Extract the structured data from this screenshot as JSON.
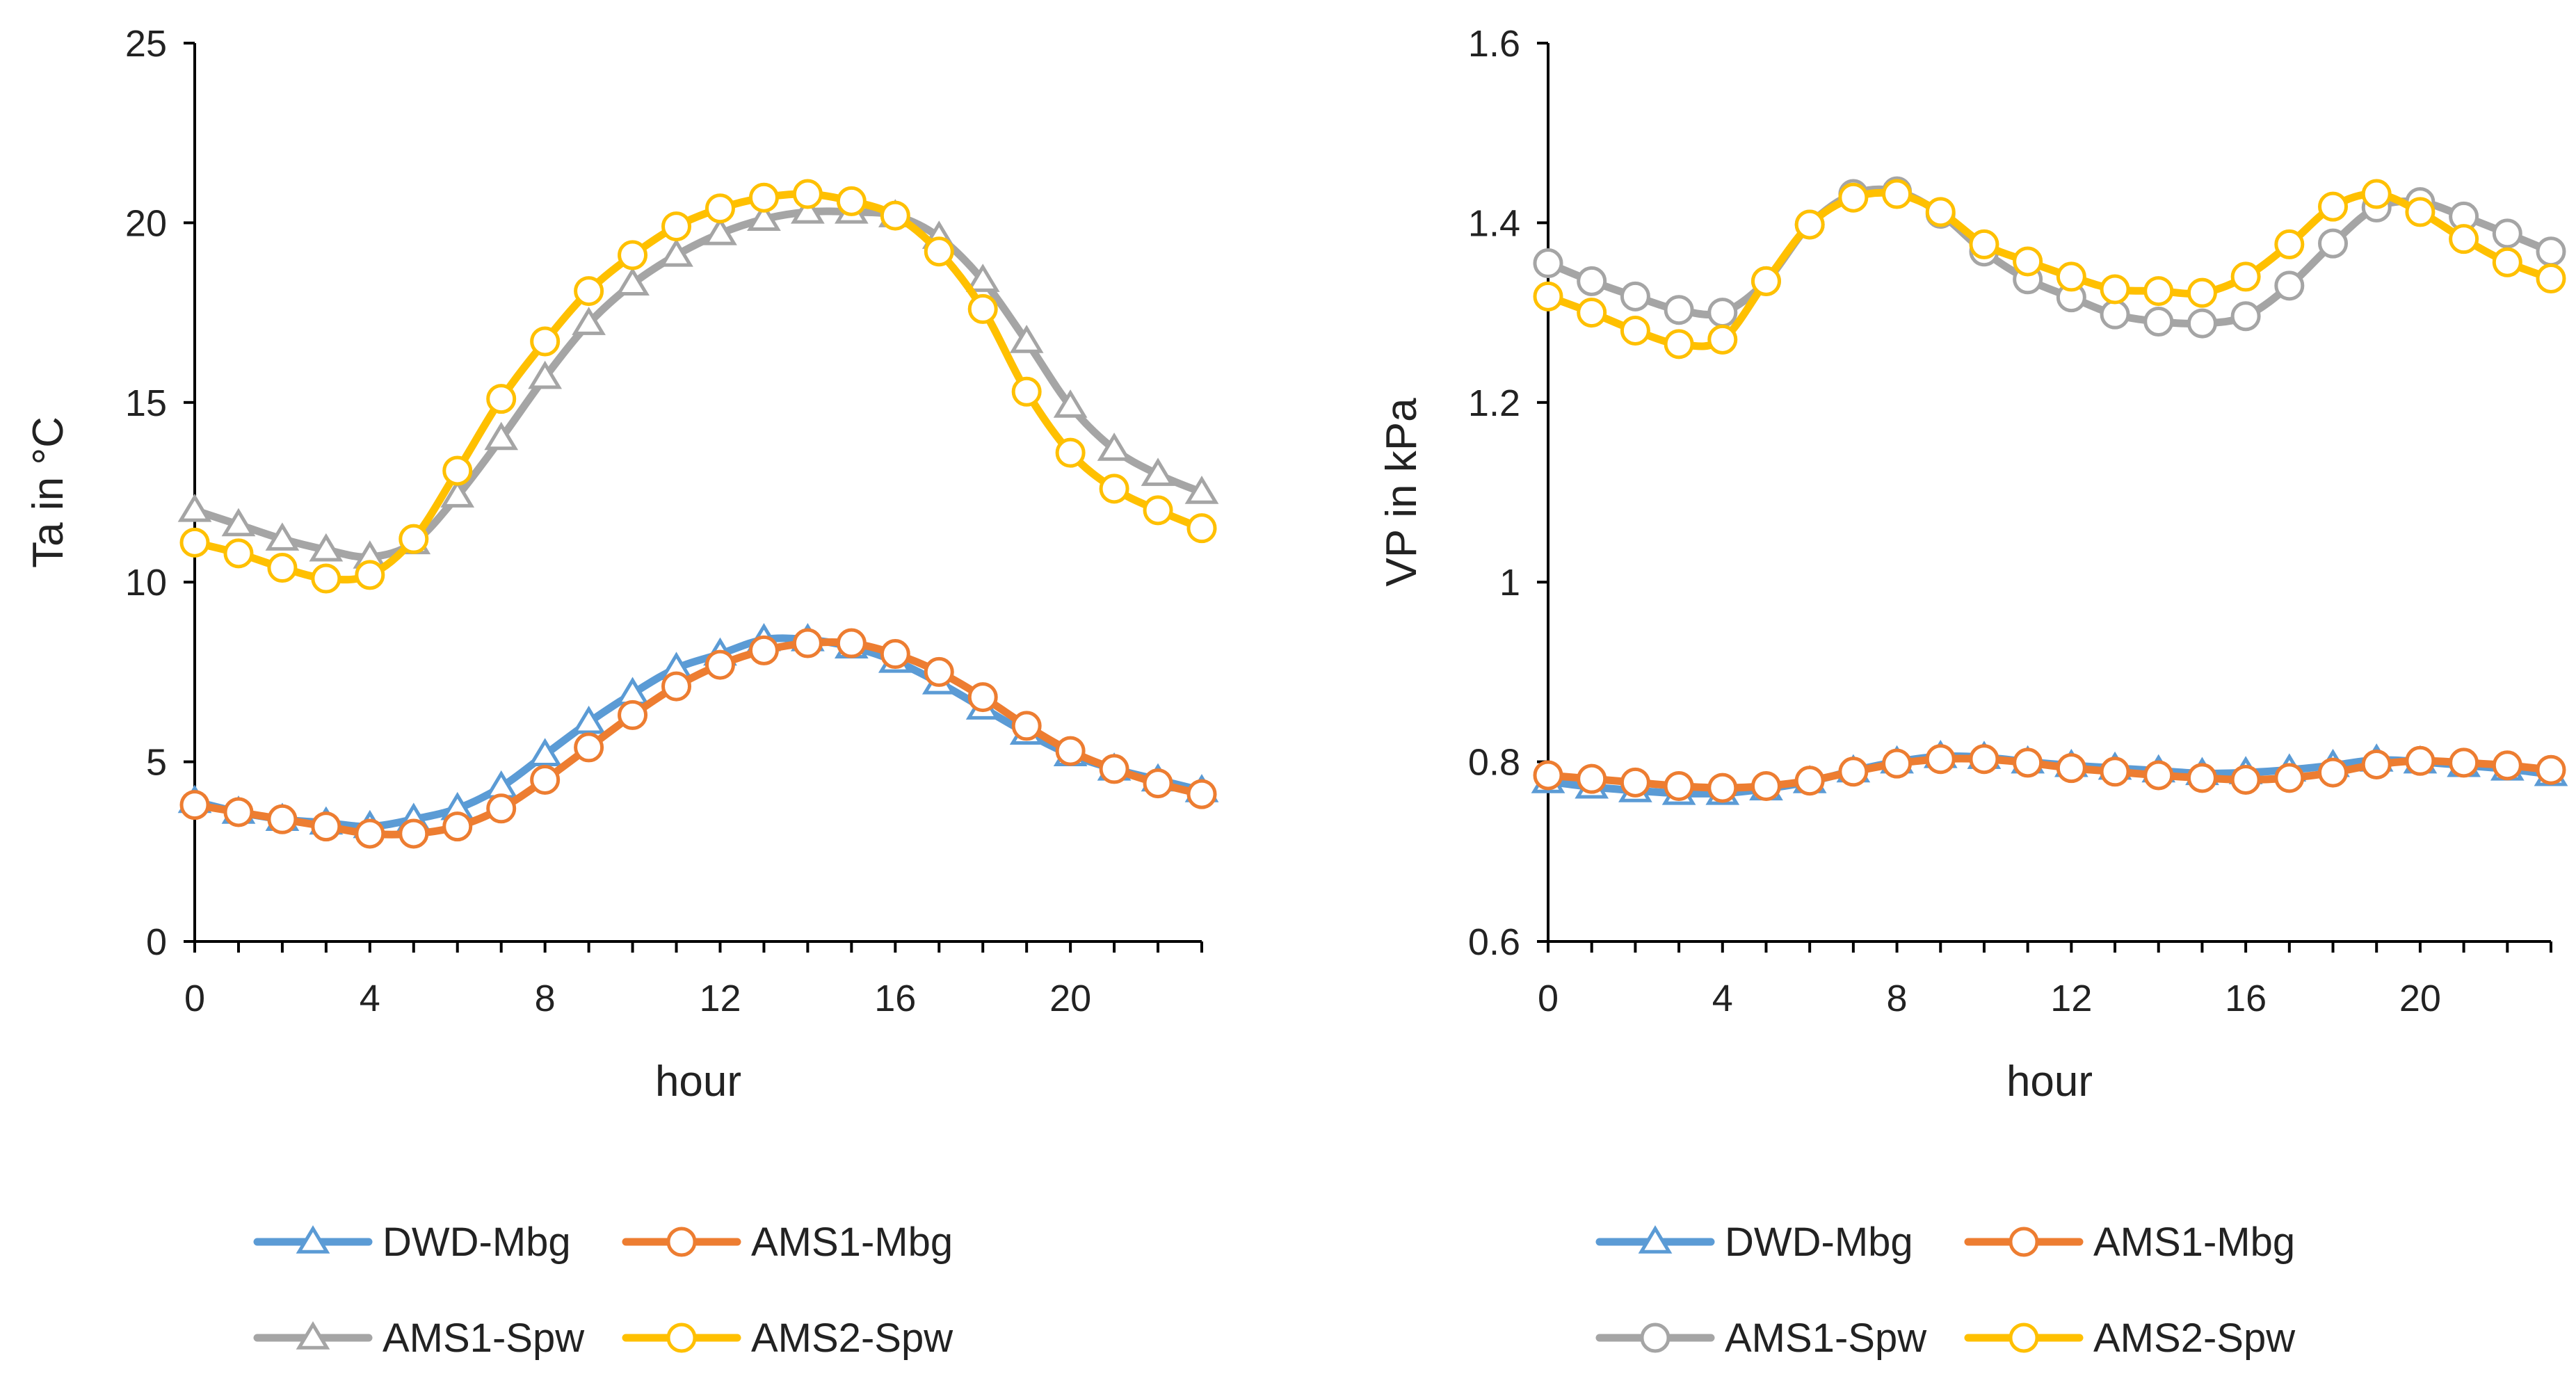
{
  "chart_data": [
    {
      "type": "line",
      "title": "",
      "xlabel": "hour",
      "ylabel": "Ta in °C",
      "xlim": [
        0,
        23
      ],
      "ylim": [
        0,
        25
      ],
      "xticks": [
        0,
        4,
        8,
        12,
        16,
        20
      ],
      "xtick_labels": [
        "0",
        "4",
        "8",
        "12",
        "16",
        "20"
      ],
      "yticks": [
        0,
        5,
        10,
        15,
        20,
        25
      ],
      "ytick_labels": [
        "0",
        "5",
        "10",
        "15",
        "20",
        "25"
      ],
      "grid": false,
      "legend_position": "bottom",
      "x": [
        0,
        1,
        2,
        3,
        4,
        5,
        6,
        7,
        8,
        9,
        10,
        11,
        12,
        13,
        14,
        15,
        16,
        17,
        18,
        19,
        20,
        21,
        22,
        23
      ],
      "series": [
        {
          "name": "DWD-Mbg",
          "color": "#5B9BD5",
          "marker": "triangle",
          "values": [
            3.9,
            3.6,
            3.4,
            3.3,
            3.2,
            3.4,
            3.7,
            4.3,
            5.2,
            6.1,
            6.9,
            7.6,
            8.0,
            8.4,
            8.4,
            8.2,
            7.8,
            7.2,
            6.5,
            5.8,
            5.2,
            4.8,
            4.5,
            4.2
          ]
        },
        {
          "name": "AMS1-Mbg",
          "color": "#ED7D31",
          "marker": "circle",
          "values": [
            3.8,
            3.6,
            3.4,
            3.2,
            3.0,
            3.0,
            3.2,
            3.7,
            4.5,
            5.4,
            6.3,
            7.1,
            7.7,
            8.1,
            8.3,
            8.3,
            8.0,
            7.5,
            6.8,
            6.0,
            5.3,
            4.8,
            4.4,
            4.1
          ]
        },
        {
          "name": "AMS1-Spw",
          "color": "#A5A5A5",
          "marker": "triangle",
          "values": [
            12.0,
            11.6,
            11.2,
            10.9,
            10.7,
            11.1,
            12.4,
            14.0,
            15.7,
            17.2,
            18.3,
            19.1,
            19.7,
            20.1,
            20.3,
            20.3,
            20.2,
            19.6,
            18.4,
            16.7,
            14.9,
            13.7,
            13.0,
            12.5
          ]
        },
        {
          "name": "AMS2-Spw",
          "color": "#FFC000",
          "marker": "circle",
          "values": [
            11.1,
            10.8,
            10.4,
            10.1,
            10.2,
            11.2,
            13.1,
            15.1,
            16.7,
            18.1,
            19.1,
            19.9,
            20.4,
            20.7,
            20.8,
            20.6,
            20.2,
            19.2,
            17.6,
            15.3,
            13.6,
            12.6,
            12.0,
            11.5
          ]
        }
      ],
      "legend": [
        {
          "label": "DWD-Mbg",
          "color": "#5B9BD5",
          "marker": "triangle"
        },
        {
          "label": "AMS1-Mbg",
          "color": "#ED7D31",
          "marker": "circle"
        },
        {
          "label": "AMS1-Spw",
          "color": "#A5A5A5",
          "marker": "triangle"
        },
        {
          "label": "AMS2-Spw",
          "color": "#FFC000",
          "marker": "circle"
        }
      ]
    },
    {
      "type": "line",
      "title": "",
      "xlabel": "hour",
      "ylabel": "VP in kPa",
      "xlim": [
        0,
        23
      ],
      "ylim": [
        0.6,
        1.6
      ],
      "xticks": [
        0,
        4,
        8,
        12,
        16,
        20
      ],
      "xtick_labels": [
        "0",
        "4",
        "8",
        "12",
        "16",
        "20"
      ],
      "yticks": [
        0.6,
        0.8,
        1.0,
        1.2,
        1.4,
        1.6
      ],
      "ytick_labels": [
        "0.6",
        "0.8",
        "1",
        "1.2",
        "1.4",
        "1.6"
      ],
      "grid": false,
      "legend_position": "bottom",
      "x": [
        0,
        1,
        2,
        3,
        4,
        5,
        6,
        7,
        8,
        9,
        10,
        11,
        12,
        13,
        14,
        15,
        16,
        17,
        18,
        19,
        20,
        21,
        22,
        23
      ],
      "series": [
        {
          "name": "DWD-Mbg",
          "color": "#5B9BD5",
          "marker": "triangle",
          "values": [
            0.778,
            0.772,
            0.768,
            0.765,
            0.765,
            0.77,
            0.778,
            0.79,
            0.8,
            0.806,
            0.805,
            0.8,
            0.796,
            0.793,
            0.79,
            0.787,
            0.788,
            0.791,
            0.796,
            0.802,
            0.8,
            0.796,
            0.792,
            0.786
          ]
        },
        {
          "name": "AMS1-Mbg",
          "color": "#ED7D31",
          "marker": "circle",
          "values": [
            0.785,
            0.781,
            0.777,
            0.773,
            0.771,
            0.773,
            0.779,
            0.789,
            0.798,
            0.803,
            0.803,
            0.799,
            0.793,
            0.789,
            0.785,
            0.782,
            0.78,
            0.782,
            0.788,
            0.797,
            0.801,
            0.799,
            0.796,
            0.791
          ]
        },
        {
          "name": "AMS1-Spw",
          "color": "#A5A5A5",
          "marker": "circle",
          "values": [
            1.355,
            1.335,
            1.318,
            1.303,
            1.3,
            1.335,
            1.398,
            1.432,
            1.435,
            1.41,
            1.368,
            1.337,
            1.317,
            1.298,
            1.29,
            1.288,
            1.296,
            1.33,
            1.377,
            1.417,
            1.423,
            1.407,
            1.388,
            1.368
          ]
        },
        {
          "name": "AMS2-Spw",
          "color": "#FFC000",
          "marker": "circle",
          "values": [
            1.318,
            1.3,
            1.28,
            1.265,
            1.27,
            1.335,
            1.398,
            1.428,
            1.432,
            1.412,
            1.376,
            1.357,
            1.34,
            1.326,
            1.324,
            1.322,
            1.34,
            1.376,
            1.418,
            1.432,
            1.412,
            1.382,
            1.356,
            1.338
          ]
        }
      ],
      "legend": [
        {
          "label": "DWD-Mbg",
          "color": "#5B9BD5",
          "marker": "triangle"
        },
        {
          "label": "AMS1-Mbg",
          "color": "#ED7D31",
          "marker": "circle"
        },
        {
          "label": "AMS1-Spw",
          "color": "#A5A5A5",
          "marker": "circle"
        },
        {
          "label": "AMS2-Spw",
          "color": "#FFC000",
          "marker": "circle"
        }
      ]
    }
  ]
}
